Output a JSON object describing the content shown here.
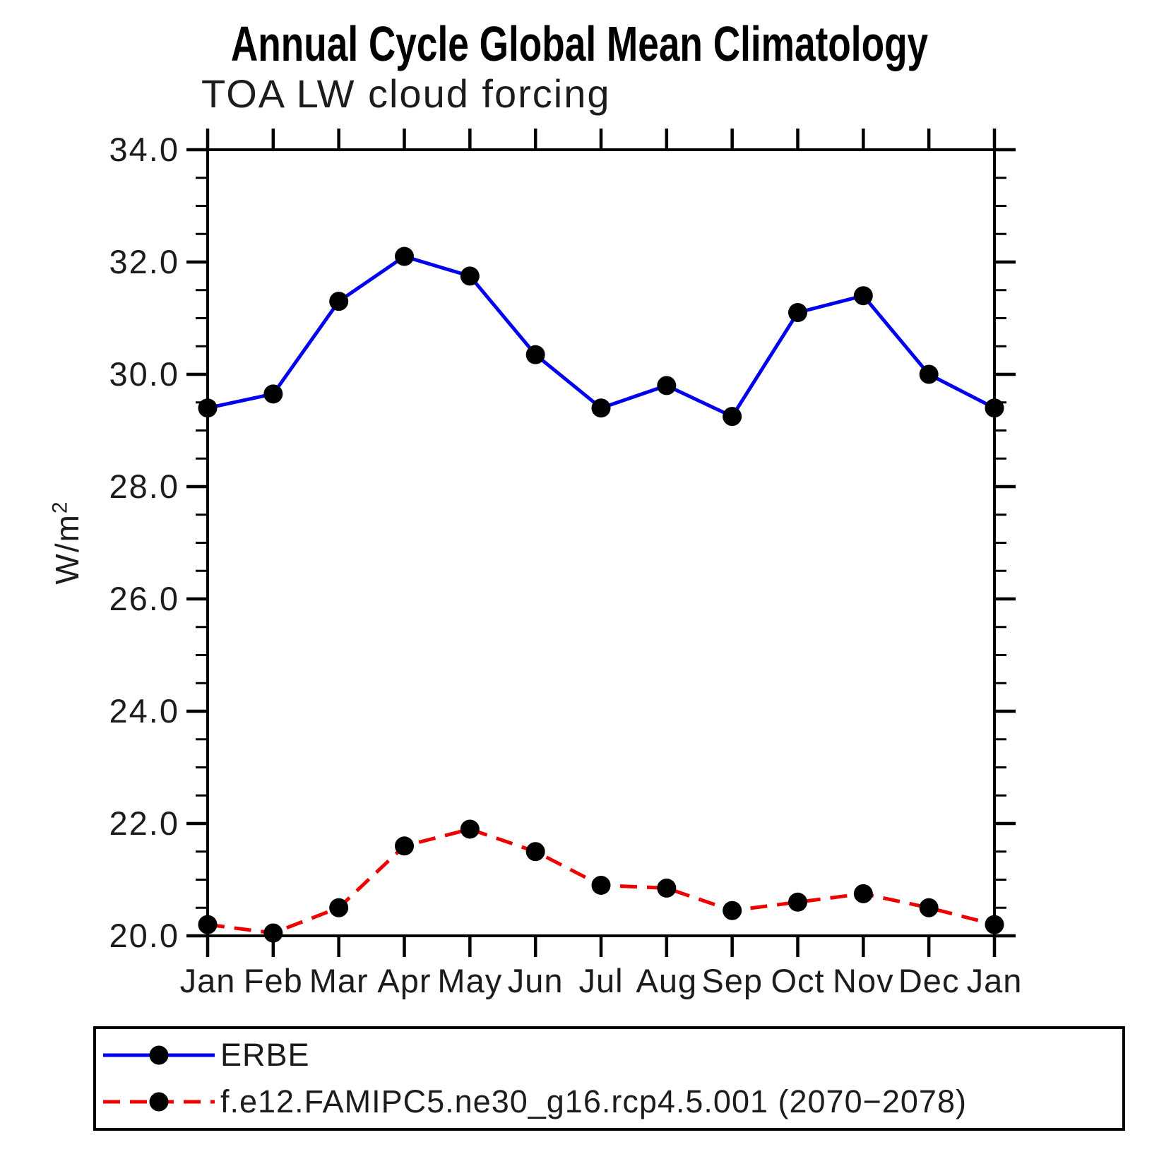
{
  "figure": {
    "title": "Annual Cycle Global Mean Climatology",
    "subtitle": "TOA LW cloud forcing",
    "ylabel": "W/m",
    "ylabel_exponent": "2"
  },
  "chart_data": {
    "type": "line",
    "categories": [
      "Jan",
      "Feb",
      "Mar",
      "Apr",
      "May",
      "Jun",
      "Jul",
      "Aug",
      "Sep",
      "Oct",
      "Nov",
      "Dec",
      "Jan"
    ],
    "xlabel": "",
    "ylabel": "W/m2",
    "ylim": [
      20.0,
      34.0
    ],
    "ytick_major_interval": 2.0,
    "ytick_minor_interval": 0.5,
    "ytick_labels": [
      "20.0",
      "22.0",
      "24.0",
      "26.0",
      "28.0",
      "30.0",
      "32.0",
      "34.0"
    ],
    "grid": false,
    "legend_position": "bottom",
    "series": [
      {
        "name": "ERBE",
        "color": "#0000ee",
        "line_style": "solid",
        "marker": "filled-circle",
        "marker_color": "#000000",
        "values": [
          29.4,
          29.65,
          31.3,
          32.1,
          31.75,
          30.35,
          29.4,
          29.8,
          29.25,
          31.1,
          31.4,
          30.0,
          29.4
        ]
      },
      {
        "name": "f.e12.FAMIPC5.ne30_g16.rcp4.5.001 (2070−2078)",
        "color": "#ee0000",
        "line_style": "dashed",
        "marker": "filled-circle",
        "marker_color": "#000000",
        "values": [
          20.2,
          20.05,
          20.5,
          21.6,
          21.9,
          21.5,
          20.9,
          20.85,
          20.45,
          20.6,
          20.75,
          20.5,
          20.2
        ]
      }
    ]
  }
}
